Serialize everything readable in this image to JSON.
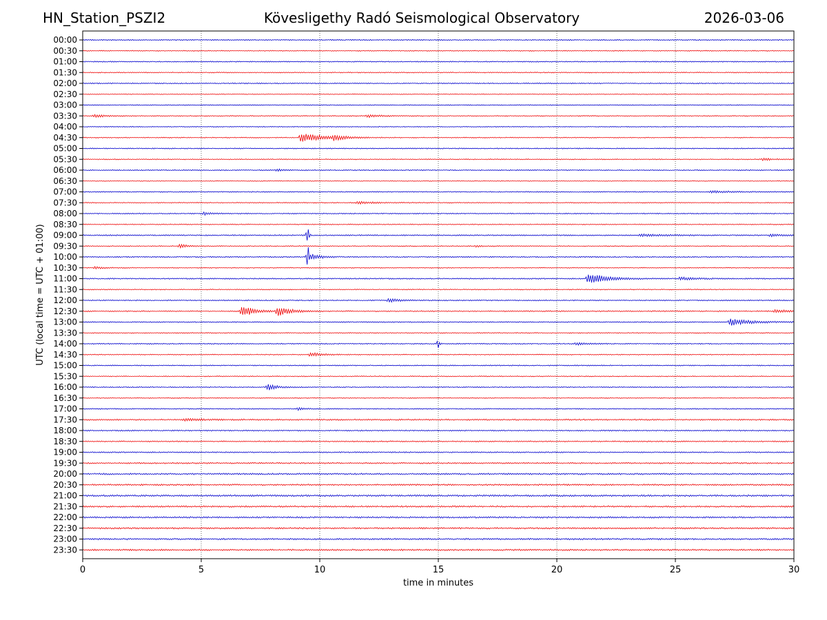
{
  "header": {
    "station": "HN_Station_PSZI2",
    "observatory": "Kövesligethy Radó Seismological Observatory",
    "date": "2026-03-06"
  },
  "chart_data": {
    "type": "line",
    "title": "Kövesligethy Radó Seismological Observatory",
    "xlabel": "time in minutes",
    "ylabel": "UTC (local time = UTC + 01:00)",
    "xlim": [
      0,
      30
    ],
    "xticks": [
      "0",
      "5",
      "10",
      "15",
      "20",
      "25",
      "30"
    ],
    "xtick_values": [
      0,
      5,
      10,
      15,
      20,
      25,
      30
    ],
    "grid": "vertical dotted at x ticks",
    "series_colors": [
      "#0000cc",
      "#ee0000"
    ],
    "rows": [
      {
        "label": "00:00",
        "color": "#0000cc",
        "noise": 0.5,
        "events": []
      },
      {
        "label": "00:30",
        "color": "#ee0000",
        "noise": 0.5,
        "events": []
      },
      {
        "label": "01:00",
        "color": "#0000cc",
        "noise": 0.5,
        "events": []
      },
      {
        "label": "01:30",
        "color": "#ee0000",
        "noise": 0.5,
        "events": []
      },
      {
        "label": "02:00",
        "color": "#0000cc",
        "noise": 0.5,
        "events": []
      },
      {
        "label": "02:30",
        "color": "#ee0000",
        "noise": 0.4,
        "events": []
      },
      {
        "label": "03:00",
        "color": "#0000cc",
        "noise": 0.4,
        "events": []
      },
      {
        "label": "03:30",
        "color": "#ee0000",
        "noise": 0.5,
        "events": [
          {
            "t": 0.5,
            "amp": 2,
            "dur": 0.8
          },
          {
            "t": 12,
            "amp": 2,
            "dur": 1
          }
        ]
      },
      {
        "label": "04:00",
        "color": "#0000cc",
        "noise": 0.4,
        "events": []
      },
      {
        "label": "04:30",
        "color": "#ee0000",
        "noise": 0.5,
        "events": [
          {
            "t": 9.2,
            "amp": 7,
            "dur": 1.6
          },
          {
            "t": 10.6,
            "amp": 3,
            "dur": 0.6
          }
        ]
      },
      {
        "label": "05:00",
        "color": "#0000cc",
        "noise": 0.5,
        "events": []
      },
      {
        "label": "05:30",
        "color": "#ee0000",
        "noise": 0.5,
        "events": [
          {
            "t": 28.7,
            "amp": 2,
            "dur": 0.5
          }
        ]
      },
      {
        "label": "06:00",
        "color": "#0000cc",
        "noise": 0.5,
        "events": [
          {
            "t": 8.2,
            "amp": 2,
            "dur": 0.4
          }
        ]
      },
      {
        "label": "06:30",
        "color": "#ee0000",
        "noise": 0.4,
        "events": []
      },
      {
        "label": "07:00",
        "color": "#0000cc",
        "noise": 0.5,
        "events": [
          {
            "t": 26.5,
            "amp": 1.5,
            "dur": 1.5
          }
        ]
      },
      {
        "label": "07:30",
        "color": "#ee0000",
        "noise": 0.5,
        "events": [
          {
            "t": 11.6,
            "amp": 2,
            "dur": 1
          }
        ]
      },
      {
        "label": "08:00",
        "color": "#0000cc",
        "noise": 0.5,
        "events": [
          {
            "t": 5.1,
            "amp": 2,
            "dur": 0.6
          }
        ]
      },
      {
        "label": "08:30",
        "color": "#ee0000",
        "noise": 0.5,
        "events": []
      },
      {
        "label": "09:00",
        "color": "#0000cc",
        "noise": 0.6,
        "events": [
          {
            "t": 9.5,
            "amp": 14,
            "dur": 0.08
          },
          {
            "t": 23.5,
            "amp": 1.5,
            "dur": 2
          },
          {
            "t": 29,
            "amp": 1.5,
            "dur": 1
          }
        ]
      },
      {
        "label": "09:30",
        "color": "#ee0000",
        "noise": 0.5,
        "events": [
          {
            "t": 4.1,
            "amp": 3,
            "dur": 0.5
          },
          {
            "t": 16.6,
            "amp": 1.5,
            "dur": 0.3
          }
        ]
      },
      {
        "label": "10:00",
        "color": "#0000cc",
        "noise": 0.6,
        "events": [
          {
            "t": 9.5,
            "amp": 18,
            "dur": 0.1
          },
          {
            "t": 9.7,
            "amp": 4,
            "dur": 0.6
          }
        ]
      },
      {
        "label": "10:30",
        "color": "#ee0000",
        "noise": 0.5,
        "events": [
          {
            "t": 0.5,
            "amp": 1.5,
            "dur": 0.7
          }
        ]
      },
      {
        "label": "11:00",
        "color": "#0000cc",
        "noise": 0.6,
        "events": [
          {
            "t": 21.3,
            "amp": 8,
            "dur": 1.3
          },
          {
            "t": 25.2,
            "amp": 2,
            "dur": 1.2
          }
        ]
      },
      {
        "label": "11:30",
        "color": "#ee0000",
        "noise": 0.5,
        "events": []
      },
      {
        "label": "12:00",
        "color": "#0000cc",
        "noise": 0.5,
        "events": [
          {
            "t": 12.9,
            "amp": 3,
            "dur": 0.8
          }
        ]
      },
      {
        "label": "12:30",
        "color": "#ee0000",
        "noise": 0.6,
        "events": [
          {
            "t": 6.7,
            "amp": 9,
            "dur": 0.8
          },
          {
            "t": 8.2,
            "amp": 7,
            "dur": 0.9
          },
          {
            "t": 29.2,
            "amp": 2,
            "dur": 1.2
          }
        ]
      },
      {
        "label": "13:00",
        "color": "#0000cc",
        "noise": 0.5,
        "events": [
          {
            "t": 27.3,
            "amp": 5,
            "dur": 1.6
          }
        ]
      },
      {
        "label": "13:30",
        "color": "#ee0000",
        "noise": 0.5,
        "events": []
      },
      {
        "label": "14:00",
        "color": "#0000cc",
        "noise": 0.5,
        "events": [
          {
            "t": 15,
            "amp": 8,
            "dur": 0.08
          },
          {
            "t": 20.8,
            "amp": 2,
            "dur": 0.8
          }
        ]
      },
      {
        "label": "14:30",
        "color": "#ee0000",
        "noise": 0.5,
        "events": [
          {
            "t": 9.6,
            "amp": 3,
            "dur": 0.8
          }
        ]
      },
      {
        "label": "15:00",
        "color": "#0000cc",
        "noise": 0.5,
        "events": []
      },
      {
        "label": "15:30",
        "color": "#ee0000",
        "noise": 0.5,
        "events": []
      },
      {
        "label": "16:00",
        "color": "#0000cc",
        "noise": 0.5,
        "events": [
          {
            "t": 7.8,
            "amp": 5,
            "dur": 0.6
          }
        ]
      },
      {
        "label": "16:30",
        "color": "#ee0000",
        "noise": 0.5,
        "events": []
      },
      {
        "label": "17:00",
        "color": "#0000cc",
        "noise": 0.5,
        "events": [
          {
            "t": 9.1,
            "amp": 2,
            "dur": 0.4
          }
        ]
      },
      {
        "label": "17:30",
        "color": "#ee0000",
        "noise": 0.7,
        "events": [
          {
            "t": 4.3,
            "amp": 1.5,
            "dur": 1.4
          }
        ]
      },
      {
        "label": "18:00",
        "color": "#0000cc",
        "noise": 0.6,
        "events": []
      },
      {
        "label": "18:30",
        "color": "#ee0000",
        "noise": 0.6,
        "events": []
      },
      {
        "label": "19:00",
        "color": "#0000cc",
        "noise": 0.6,
        "events": []
      },
      {
        "label": "19:30",
        "color": "#ee0000",
        "noise": 0.7,
        "events": []
      },
      {
        "label": "20:00",
        "color": "#0000cc",
        "noise": 0.8,
        "events": []
      },
      {
        "label": "20:30",
        "color": "#ee0000",
        "noise": 0.8,
        "events": []
      },
      {
        "label": "21:00",
        "color": "#0000cc",
        "noise": 0.9,
        "events": []
      },
      {
        "label": "21:30",
        "color": "#ee0000",
        "noise": 0.8,
        "events": []
      },
      {
        "label": "22:00",
        "color": "#0000cc",
        "noise": 0.8,
        "events": []
      },
      {
        "label": "22:30",
        "color": "#ee0000",
        "noise": 0.8,
        "events": []
      },
      {
        "label": "23:00",
        "color": "#0000cc",
        "noise": 0.8,
        "events": []
      },
      {
        "label": "23:30",
        "color": "#ee0000",
        "noise": 0.8,
        "events": []
      }
    ]
  }
}
